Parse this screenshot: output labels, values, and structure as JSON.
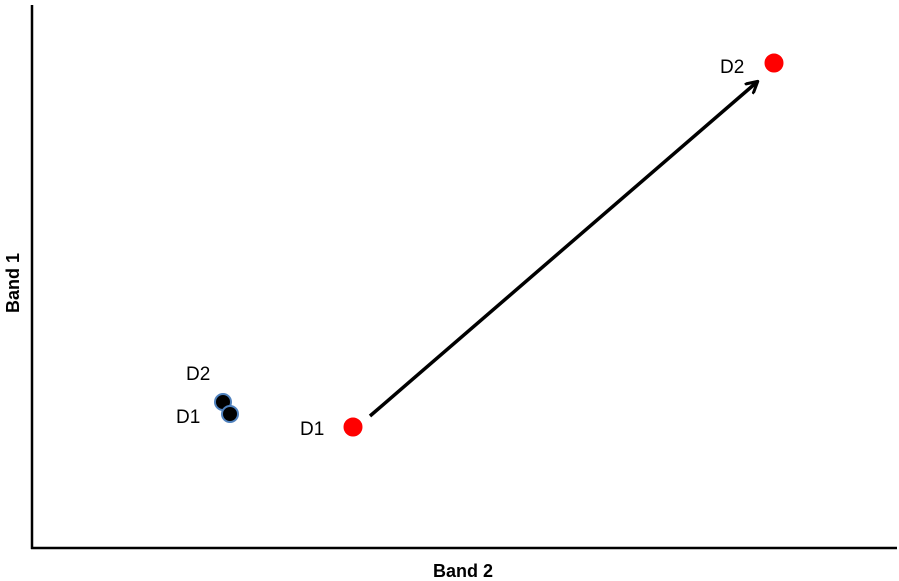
{
  "axes": {
    "x_label": "Band 2",
    "y_label": "Band 1"
  },
  "points": [
    {
      "id": "black-d2",
      "label": "D2",
      "group": "black",
      "color": "#000000"
    },
    {
      "id": "black-d1",
      "label": "D1",
      "group": "black",
      "color": "#000000"
    },
    {
      "id": "red-d1",
      "label": "D1",
      "group": "red",
      "color": "#ff0000"
    },
    {
      "id": "red-d2",
      "label": "D2",
      "group": "red",
      "color": "#ff0000"
    }
  ],
  "arrow": {
    "from": "red-d1",
    "to": "red-d2",
    "color": "#000000"
  },
  "colors": {
    "axis": "#000000",
    "black_points": "#000000",
    "black_point_outline": "#4f81bd",
    "red_points": "#ff0000"
  }
}
